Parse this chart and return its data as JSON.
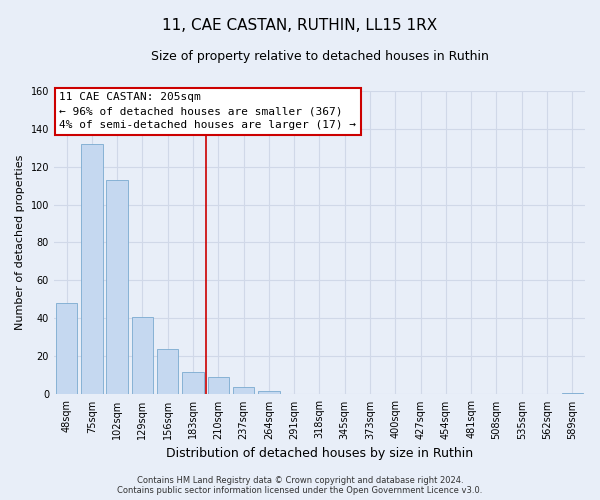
{
  "title": "11, CAE CASTAN, RUTHIN, LL15 1RX",
  "subtitle": "Size of property relative to detached houses in Ruthin",
  "xlabel": "Distribution of detached houses by size in Ruthin",
  "ylabel": "Number of detached properties",
  "bar_labels": [
    "48sqm",
    "75sqm",
    "102sqm",
    "129sqm",
    "156sqm",
    "183sqm",
    "210sqm",
    "237sqm",
    "264sqm",
    "291sqm",
    "318sqm",
    "345sqm",
    "373sqm",
    "400sqm",
    "427sqm",
    "454sqm",
    "481sqm",
    "508sqm",
    "535sqm",
    "562sqm",
    "589sqm"
  ],
  "bar_values": [
    48,
    132,
    113,
    41,
    24,
    12,
    9,
    4,
    2,
    0,
    0,
    0,
    0,
    0,
    0,
    0,
    0,
    0,
    0,
    0,
    1
  ],
  "bar_color": "#c5d8f0",
  "bar_edge_color": "#7aaad0",
  "highlight_line_index": 6,
  "ylim": [
    0,
    160
  ],
  "yticks": [
    0,
    20,
    40,
    60,
    80,
    100,
    120,
    140,
    160
  ],
  "annotation_title": "11 CAE CASTAN: 205sqm",
  "annotation_line1": "← 96% of detached houses are smaller (367)",
  "annotation_line2": "4% of semi-detached houses are larger (17) →",
  "annotation_box_color": "#ffffff",
  "annotation_box_edge": "#cc0000",
  "vline_color": "#cc0000",
  "footer_line1": "Contains HM Land Registry data © Crown copyright and database right 2024.",
  "footer_line2": "Contains public sector information licensed under the Open Government Licence v3.0.",
  "grid_color": "#d0d8e8",
  "background_color": "#e8eef8",
  "title_fontsize": 11,
  "subtitle_fontsize": 9,
  "ylabel_fontsize": 8,
  "xlabel_fontsize": 9,
  "tick_fontsize": 7,
  "annotation_fontsize": 8,
  "footer_fontsize": 6
}
